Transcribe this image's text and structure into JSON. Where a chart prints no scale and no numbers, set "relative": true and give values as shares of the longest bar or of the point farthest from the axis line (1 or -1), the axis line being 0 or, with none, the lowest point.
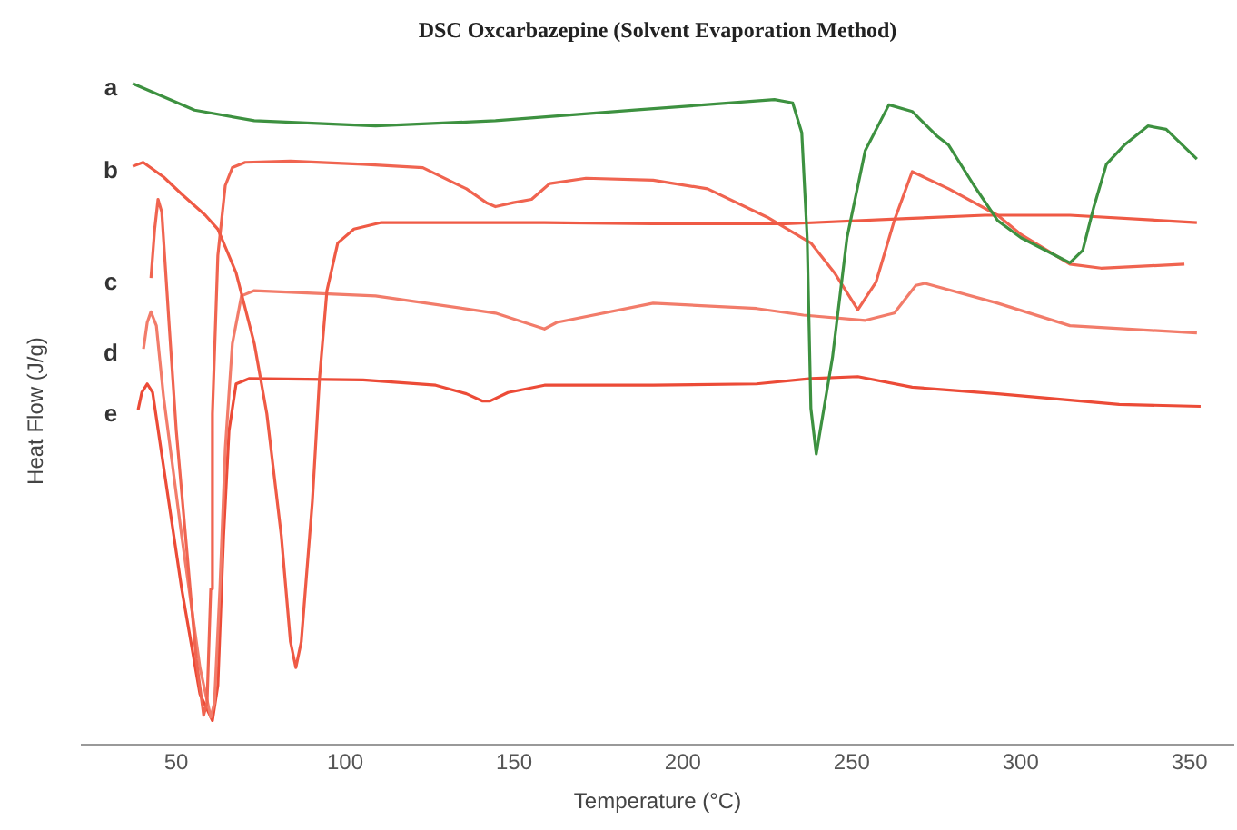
{
  "chart_data": {
    "type": "line",
    "title": "DSC Oxcarbazepine (Solvent Evaporation Method)",
    "xlabel": "Temperature (°C)",
    "ylabel": "Heat Flow (J/g)",
    "relative": true,
    "xlim": [
      22,
      363
    ],
    "xticks": [
      50,
      100,
      150,
      200,
      250,
      300,
      350
    ],
    "series": [
      {
        "name": "a",
        "color": "#3d9140",
        "x": [
          37.1,
          55.4,
          73.1,
          109.0,
          144.5,
          185.8,
          227.1,
          232.5,
          235.2,
          236.8,
          237.9,
          239.5,
          244.3,
          248.6,
          254.0,
          261.0,
          267.9,
          275.4,
          278.7,
          286.2,
          293.2,
          300.1,
          314.6,
          318.4,
          321.6,
          325.4,
          330.7,
          337.7,
          343.1,
          352.2
        ],
        "values": [
          1.0,
          0.96,
          0.944,
          0.936,
          0.944,
          0.96,
          0.976,
          0.971,
          0.926,
          0.767,
          0.509,
          0.44,
          0.586,
          0.767,
          0.899,
          0.968,
          0.958,
          0.92,
          0.907,
          0.846,
          0.793,
          0.767,
          0.729,
          0.748,
          0.812,
          0.878,
          0.907,
          0.936,
          0.931,
          0.886
        ]
      },
      {
        "name": "b",
        "color": "#ef5a45",
        "x": [
          37.1,
          40.2,
          46.2,
          51.6,
          58.6,
          62.3,
          67.7,
          73.1,
          76.8,
          81.1,
          83.8,
          85.4,
          87.0,
          90.3,
          92.4,
          94.6,
          97.8,
          102.6,
          110.7,
          159.0,
          191.2,
          230.4,
          266.3,
          289.4,
          314.6,
          352.2
        ],
        "values": [
          0.875,
          0.881,
          0.859,
          0.833,
          0.801,
          0.78,
          0.714,
          0.607,
          0.501,
          0.316,
          0.156,
          0.117,
          0.156,
          0.369,
          0.554,
          0.687,
          0.759,
          0.78,
          0.79,
          0.79,
          0.788,
          0.788,
          0.796,
          0.801,
          0.801,
          0.79
        ]
      },
      {
        "name": "c",
        "color": "#f06450",
        "x": [
          42.5,
          43.6,
          44.6,
          45.7,
          47.9,
          50.0,
          53.2,
          55.9,
          58.1,
          59.1,
          60.2,
          60.7,
          62.3,
          64.5,
          66.6,
          70.4,
          83.8,
          105.3,
          123.0,
          135.9,
          141.8,
          144.5,
          149.8,
          155.2,
          160.6,
          171.3,
          191.2,
          207.3,
          225.0,
          237.9,
          244.9,
          251.8,
          257.2,
          262.6,
          267.9,
          278.7,
          293.2,
          300.1,
          314.6,
          323.8,
          348.5
        ],
        "values": [
          0.706,
          0.78,
          0.825,
          0.806,
          0.634,
          0.475,
          0.289,
          0.13,
          0.045,
          0.064,
          0.236,
          0.501,
          0.74,
          0.846,
          0.873,
          0.881,
          0.883,
          0.878,
          0.873,
          0.841,
          0.82,
          0.814,
          0.82,
          0.825,
          0.849,
          0.857,
          0.854,
          0.841,
          0.798,
          0.759,
          0.714,
          0.658,
          0.7,
          0.793,
          0.867,
          0.841,
          0.801,
          0.772,
          0.727,
          0.721,
          0.727
        ]
      },
      {
        "name": "d",
        "color": "#f27c6a",
        "x": [
          40.3,
          41.4,
          42.5,
          44.1,
          46.2,
          51.6,
          57.0,
          60.2,
          61.3,
          62.9,
          64.5,
          66.6,
          69.3,
          73.1,
          109.0,
          144.5,
          159.0,
          162.7,
          191.2,
          221.8,
          235.7,
          254.0,
          262.6,
          269.0,
          271.7,
          293.2,
          314.6,
          352.2
        ],
        "values": [
          0.599,
          0.639,
          0.655,
          0.634,
          0.528,
          0.316,
          0.117,
          0.042,
          0.064,
          0.236,
          0.448,
          0.607,
          0.679,
          0.687,
          0.679,
          0.653,
          0.629,
          0.639,
          0.668,
          0.66,
          0.65,
          0.642,
          0.653,
          0.695,
          0.698,
          0.668,
          0.634,
          0.623
        ]
      },
      {
        "name": "e",
        "color": "#ec4b37",
        "x": [
          38.7,
          39.8,
          41.4,
          43.0,
          46.2,
          51.6,
          57.0,
          60.7,
          62.3,
          64.0,
          65.6,
          67.7,
          71.5,
          105.3,
          126.8,
          135.9,
          140.7,
          142.9,
          148.2,
          159.0,
          191.2,
          221.8,
          237.9,
          251.8,
          267.9,
          293.2,
          329.2,
          353.3
        ],
        "values": [
          0.507,
          0.533,
          0.546,
          0.533,
          0.422,
          0.236,
          0.077,
          0.037,
          0.09,
          0.316,
          0.475,
          0.546,
          0.554,
          0.552,
          0.544,
          0.531,
          0.52,
          0.52,
          0.533,
          0.544,
          0.544,
          0.546,
          0.554,
          0.557,
          0.541,
          0.531,
          0.515,
          0.512
        ]
      }
    ]
  }
}
